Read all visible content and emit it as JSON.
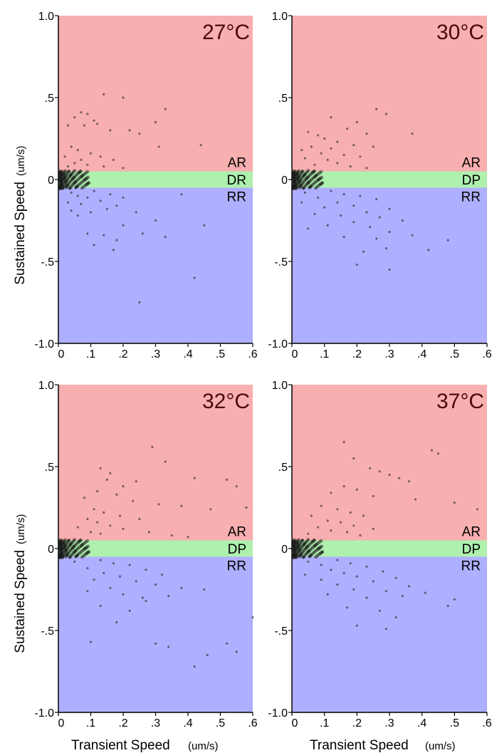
{
  "colors": {
    "ar_band": "#f8afaf",
    "dp_band": "#aef0ae",
    "rr_band": "#afafff",
    "point": "#1a1a1a",
    "title": "#4a0a0a"
  },
  "axes": {
    "y_label": "Sustained  Speed",
    "y_unit": "(um/s)",
    "x_label": "Transient Speed",
    "x_unit": "(um/s)",
    "x_ticks": [
      "0",
      ".1",
      ".2",
      ".3",
      ".4",
      ".5",
      ".6"
    ],
    "y_ticks": [
      "1.0",
      ".5",
      "0",
      "-.5",
      "-1.0"
    ]
  },
  "chart_data": [
    {
      "type": "scatter",
      "title": "27°C",
      "xlim": [
        0,
        0.6
      ],
      "ylim": [
        -1.0,
        1.0
      ],
      "regions": [
        {
          "label": "AR",
          "range": [
            0.05,
            1.0
          ],
          "color": "#f8afaf"
        },
        {
          "label": "DR",
          "range": [
            -0.05,
            0.05
          ],
          "color": "#aef0ae"
        },
        {
          "label": "RR",
          "range": [
            -1.0,
            -0.05
          ],
          "color": "#afafff"
        }
      ],
      "points": [
        [
          0.14,
          0.52
        ],
        [
          0.2,
          0.5
        ],
        [
          0.33,
          0.43
        ],
        [
          0.07,
          0.41
        ],
        [
          0.09,
          0.4
        ],
        [
          0.05,
          0.38
        ],
        [
          0.11,
          0.36
        ],
        [
          0.12,
          0.34
        ],
        [
          0.3,
          0.35
        ],
        [
          0.03,
          0.33
        ],
        [
          0.08,
          0.33
        ],
        [
          0.16,
          0.3
        ],
        [
          0.25,
          0.28
        ],
        [
          0.22,
          0.3
        ],
        [
          0.31,
          0.2
        ],
        [
          0.44,
          0.21
        ],
        [
          0.04,
          0.2
        ],
        [
          0.06,
          0.18
        ],
        [
          0.1,
          0.16
        ],
        [
          0.13,
          0.14
        ],
        [
          0.02,
          0.14
        ],
        [
          0.07,
          0.12
        ],
        [
          0.17,
          0.12
        ],
        [
          0.05,
          0.1
        ],
        [
          0.09,
          0.09
        ],
        [
          0.03,
          0.08
        ],
        [
          0.14,
          0.08
        ],
        [
          0.2,
          0.07
        ],
        [
          0.11,
          -0.07
        ],
        [
          0.04,
          -0.08
        ],
        [
          0.16,
          -0.09
        ],
        [
          0.06,
          -0.1
        ],
        [
          0.09,
          -0.11
        ],
        [
          0.2,
          -0.11
        ],
        [
          0.13,
          -0.13
        ],
        [
          0.03,
          -0.14
        ],
        [
          0.07,
          -0.15
        ],
        [
          0.18,
          -0.16
        ],
        [
          0.15,
          -0.18
        ],
        [
          0.1,
          -0.2
        ],
        [
          0.24,
          -0.2
        ],
        [
          0.3,
          -0.25
        ],
        [
          0.38,
          -0.09
        ],
        [
          0.2,
          -0.28
        ],
        [
          0.09,
          -0.33
        ],
        [
          0.14,
          -0.34
        ],
        [
          0.18,
          -0.37
        ],
        [
          0.26,
          -0.33
        ],
        [
          0.11,
          -0.4
        ],
        [
          0.17,
          -0.43
        ],
        [
          0.33,
          -0.35
        ],
        [
          0.45,
          -0.28
        ],
        [
          0.42,
          -0.6
        ],
        [
          0.25,
          -0.75
        ],
        [
          0.06,
          -0.22
        ],
        [
          0.04,
          -0.19
        ]
      ]
    },
    {
      "type": "scatter",
      "title": "30°C",
      "xlim": [
        0,
        0.6
      ],
      "ylim": [
        -1.0,
        1.0
      ],
      "regions": [
        {
          "label": "AR",
          "range": [
            0.05,
            1.0
          ],
          "color": "#f8afaf"
        },
        {
          "label": "DP",
          "range": [
            -0.05,
            0.05
          ],
          "color": "#aef0ae"
        },
        {
          "label": "RR",
          "range": [
            -1.0,
            -0.05
          ],
          "color": "#afafff"
        }
      ],
      "points": [
        [
          0.26,
          0.43
        ],
        [
          0.29,
          0.4
        ],
        [
          0.12,
          0.38
        ],
        [
          0.2,
          0.35
        ],
        [
          0.17,
          0.31
        ],
        [
          0.05,
          0.29
        ],
        [
          0.08,
          0.27
        ],
        [
          0.23,
          0.28
        ],
        [
          0.37,
          0.28
        ],
        [
          0.1,
          0.25
        ],
        [
          0.14,
          0.23
        ],
        [
          0.19,
          0.21
        ],
        [
          0.06,
          0.2
        ],
        [
          0.12,
          0.19
        ],
        [
          0.25,
          0.2
        ],
        [
          0.03,
          0.18
        ],
        [
          0.09,
          0.16
        ],
        [
          0.16,
          0.15
        ],
        [
          0.21,
          0.14
        ],
        [
          0.04,
          0.13
        ],
        [
          0.11,
          0.12
        ],
        [
          0.14,
          0.1
        ],
        [
          0.07,
          0.09
        ],
        [
          0.18,
          0.08
        ],
        [
          0.23,
          0.07
        ],
        [
          0.12,
          -0.07
        ],
        [
          0.04,
          -0.08
        ],
        [
          0.16,
          -0.09
        ],
        [
          0.21,
          -0.1
        ],
        [
          0.08,
          -0.11
        ],
        [
          0.26,
          -0.12
        ],
        [
          0.14,
          -0.14
        ],
        [
          0.03,
          -0.14
        ],
        [
          0.19,
          -0.16
        ],
        [
          0.1,
          -0.17
        ],
        [
          0.3,
          -0.18
        ],
        [
          0.23,
          -0.2
        ],
        [
          0.07,
          -0.21
        ],
        [
          0.15,
          -0.22
        ],
        [
          0.27,
          -0.23
        ],
        [
          0.34,
          -0.25
        ],
        [
          0.19,
          -0.26
        ],
        [
          0.11,
          -0.28
        ],
        [
          0.24,
          -0.29
        ],
        [
          0.05,
          -0.3
        ],
        [
          0.3,
          -0.32
        ],
        [
          0.37,
          -0.34
        ],
        [
          0.16,
          -0.35
        ],
        [
          0.26,
          -0.36
        ],
        [
          0.48,
          -0.37
        ],
        [
          0.29,
          -0.42
        ],
        [
          0.42,
          -0.43
        ],
        [
          0.3,
          -0.55
        ],
        [
          0.2,
          -0.52
        ],
        [
          0.22,
          -0.44
        ]
      ]
    },
    {
      "type": "scatter",
      "title": "32°C",
      "xlim": [
        0,
        0.6
      ],
      "ylim": [
        -1.0,
        1.0
      ],
      "regions": [
        {
          "label": "AR",
          "range": [
            0.05,
            1.0
          ],
          "color": "#f8afaf"
        },
        {
          "label": "DP",
          "range": [
            -0.05,
            0.05
          ],
          "color": "#aef0ae"
        },
        {
          "label": "RR",
          "range": [
            -1.0,
            -0.05
          ],
          "color": "#afafff"
        }
      ],
      "points": [
        [
          0.29,
          0.62
        ],
        [
          0.33,
          0.53
        ],
        [
          0.13,
          0.49
        ],
        [
          0.16,
          0.46
        ],
        [
          0.15,
          0.42
        ],
        [
          0.24,
          0.41
        ],
        [
          0.2,
          0.38
        ],
        [
          0.12,
          0.35
        ],
        [
          0.18,
          0.33
        ],
        [
          0.08,
          0.31
        ],
        [
          0.23,
          0.29
        ],
        [
          0.31,
          0.27
        ],
        [
          0.38,
          0.26
        ],
        [
          0.47,
          0.24
        ],
        [
          0.55,
          0.38
        ],
        [
          0.58,
          0.25
        ],
        [
          0.11,
          0.24
        ],
        [
          0.14,
          0.22
        ],
        [
          0.19,
          0.2
        ],
        [
          0.09,
          0.18
        ],
        [
          0.25,
          0.18
        ],
        [
          0.12,
          0.16
        ],
        [
          0.16,
          0.14
        ],
        [
          0.06,
          0.13
        ],
        [
          0.2,
          0.12
        ],
        [
          0.1,
          0.1
        ],
        [
          0.28,
          0.1
        ],
        [
          0.13,
          0.09
        ],
        [
          0.35,
          0.08
        ],
        [
          0.4,
          0.07
        ],
        [
          0.52,
          0.42
        ],
        [
          0.42,
          0.43
        ],
        [
          0.13,
          -0.07
        ],
        [
          0.05,
          -0.08
        ],
        [
          0.17,
          -0.09
        ],
        [
          0.22,
          -0.1
        ],
        [
          0.09,
          -0.12
        ],
        [
          0.27,
          -0.13
        ],
        [
          0.14,
          -0.15
        ],
        [
          0.19,
          -0.17
        ],
        [
          0.32,
          -0.16
        ],
        [
          0.11,
          -0.19
        ],
        [
          0.24,
          -0.2
        ],
        [
          0.3,
          -0.22
        ],
        [
          0.16,
          -0.24
        ],
        [
          0.38,
          -0.24
        ],
        [
          0.09,
          -0.26
        ],
        [
          0.2,
          -0.28
        ],
        [
          0.26,
          -0.3
        ],
        [
          0.34,
          -0.29
        ],
        [
          0.45,
          -0.25
        ],
        [
          0.6,
          -0.42
        ],
        [
          0.13,
          -0.35
        ],
        [
          0.22,
          -0.38
        ],
        [
          0.18,
          -0.45
        ],
        [
          0.3,
          -0.58
        ],
        [
          0.34,
          -0.6
        ],
        [
          0.42,
          -0.72
        ],
        [
          0.46,
          -0.65
        ],
        [
          0.52,
          -0.58
        ],
        [
          0.55,
          -0.63
        ],
        [
          0.1,
          -0.57
        ],
        [
          0.27,
          -0.32
        ]
      ]
    },
    {
      "type": "scatter",
      "title": "37°C",
      "xlim": [
        0,
        0.6
      ],
      "ylim": [
        -1.0,
        1.0
      ],
      "regions": [
        {
          "label": "AR",
          "range": [
            0.05,
            1.0
          ],
          "color": "#f8afaf"
        },
        {
          "label": "DP",
          "range": [
            -0.05,
            0.05
          ],
          "color": "#aef0ae"
        },
        {
          "label": "RR",
          "range": [
            -1.0,
            -0.05
          ],
          "color": "#afafff"
        }
      ],
      "points": [
        [
          0.16,
          0.65
        ],
        [
          0.43,
          0.6
        ],
        [
          0.45,
          0.58
        ],
        [
          0.19,
          0.55
        ],
        [
          0.24,
          0.49
        ],
        [
          0.27,
          0.47
        ],
        [
          0.3,
          0.45
        ],
        [
          0.33,
          0.43
        ],
        [
          0.36,
          0.41
        ],
        [
          0.16,
          0.38
        ],
        [
          0.2,
          0.36
        ],
        [
          0.12,
          0.34
        ],
        [
          0.25,
          0.32
        ],
        [
          0.38,
          0.3
        ],
        [
          0.5,
          0.28
        ],
        [
          0.57,
          0.24
        ],
        [
          0.09,
          0.26
        ],
        [
          0.14,
          0.24
        ],
        [
          0.18,
          0.22
        ],
        [
          0.22,
          0.2
        ],
        [
          0.06,
          0.2
        ],
        [
          0.11,
          0.17
        ],
        [
          0.15,
          0.16
        ],
        [
          0.19,
          0.14
        ],
        [
          0.08,
          0.13
        ],
        [
          0.25,
          0.12
        ],
        [
          0.12,
          0.11
        ],
        [
          0.17,
          0.1
        ],
        [
          0.05,
          0.09
        ],
        [
          0.21,
          0.08
        ],
        [
          0.14,
          -0.07
        ],
        [
          0.05,
          -0.08
        ],
        [
          0.18,
          -0.09
        ],
        [
          0.09,
          -0.1
        ],
        [
          0.23,
          -0.11
        ],
        [
          0.12,
          -0.13
        ],
        [
          0.28,
          -0.14
        ],
        [
          0.16,
          -0.15
        ],
        [
          0.04,
          -0.16
        ],
        [
          0.2,
          -0.17
        ],
        [
          0.32,
          -0.18
        ],
        [
          0.09,
          -0.19
        ],
        [
          0.25,
          -0.2
        ],
        [
          0.14,
          -0.22
        ],
        [
          0.36,
          -0.23
        ],
        [
          0.19,
          -0.25
        ],
        [
          0.29,
          -0.26
        ],
        [
          0.11,
          -0.28
        ],
        [
          0.23,
          -0.3
        ],
        [
          0.34,
          -0.29
        ],
        [
          0.5,
          -0.31
        ],
        [
          0.17,
          -0.36
        ],
        [
          0.27,
          -0.38
        ],
        [
          0.32,
          -0.42
        ],
        [
          0.2,
          -0.47
        ],
        [
          0.29,
          -0.49
        ],
        [
          0.48,
          -0.35
        ],
        [
          0.41,
          -0.27
        ]
      ]
    }
  ]
}
